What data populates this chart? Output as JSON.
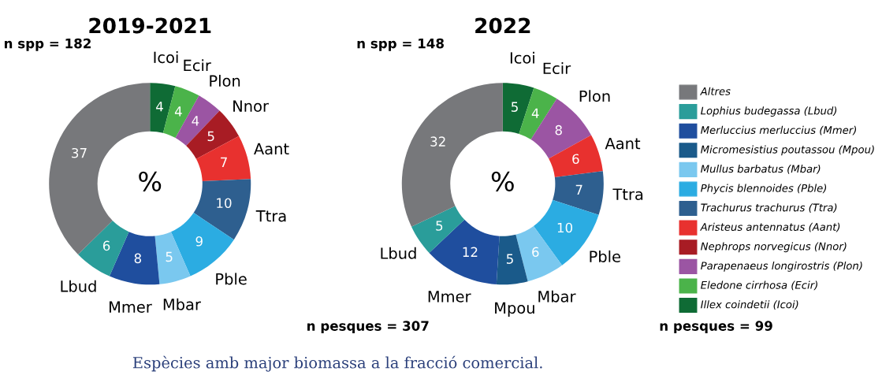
{
  "chart_data": [
    {
      "type": "donut",
      "title": "2019-2021",
      "categories": [
        "Icoi",
        "Ecir",
        "Plon",
        "Nnor",
        "Aant",
        "Ttra",
        "Pble",
        "Mbar",
        "Mmer",
        "Lbud",
        null
      ],
      "values": [
        4,
        4,
        4,
        5,
        7,
        10,
        9,
        5,
        8,
        6,
        37
      ],
      "colors": [
        "#0f6b35",
        "#4bb34a",
        "#9b55a3",
        "#a81c24",
        "#e8312f",
        "#2e5f8f",
        "#2bace2",
        "#7ac8ef",
        "#1f4e9e",
        "#2a9d9a",
        "#77787b"
      ],
      "data_labels": true,
      "annotations": [
        "n spp = 182",
        "n pesques = 307",
        "%",
        "Espècies amb major biomassa a la fracció comercial."
      ]
    },
    {
      "type": "donut",
      "title": "2022",
      "categories": [
        "Icoi",
        "Ecir",
        "Plon",
        "Aant",
        "Ttra",
        "Pble",
        "Mbar",
        "Mpou",
        "Mmer",
        "Lbud",
        null
      ],
      "values": [
        5,
        4,
        8,
        6,
        7,
        10,
        6,
        5,
        12,
        5,
        32
      ],
      "colors": [
        "#0f6b35",
        "#4bb34a",
        "#9b55a3",
        "#e8312f",
        "#2e5f8f",
        "#2bace2",
        "#7ac8ef",
        "#1a5a8a",
        "#1f4e9e",
        "#2a9d9a",
        "#77787b"
      ],
      "data_labels": true,
      "annotations": [
        "n spp = 148",
        "n pesques = 99",
        "%"
      ]
    },
    {
      "type": "other",
      "categories": [
        "Altres",
        "Lophius budegassa (Lbud)",
        "Merluccius merluccius (Mmer)",
        "Micromesistius poutassou (Mpou)",
        "Mullus barbatus (Mbar)",
        "Phycis blennoides (Pble)",
        "Trachurus trachurus (Ttra)",
        "Aristeus antennatus (Aant)",
        "Nephrops norvegicus (Nnor)",
        "Parapenaeus longirostris (Plon)",
        "Eledone cirrhosa (Ecir)",
        "Illex coindetii (Icoi)"
      ],
      "colors": [
        "#77787b",
        "#2a9d9a",
        "#1f4e9e",
        "#1a5a8a",
        "#7ac8ef",
        "#2bace2",
        "#2e5f8f",
        "#e8312f",
        "#a81c24",
        "#9b55a3",
        "#4bb34a",
        "#0f6b35"
      ]
    }
  ]
}
